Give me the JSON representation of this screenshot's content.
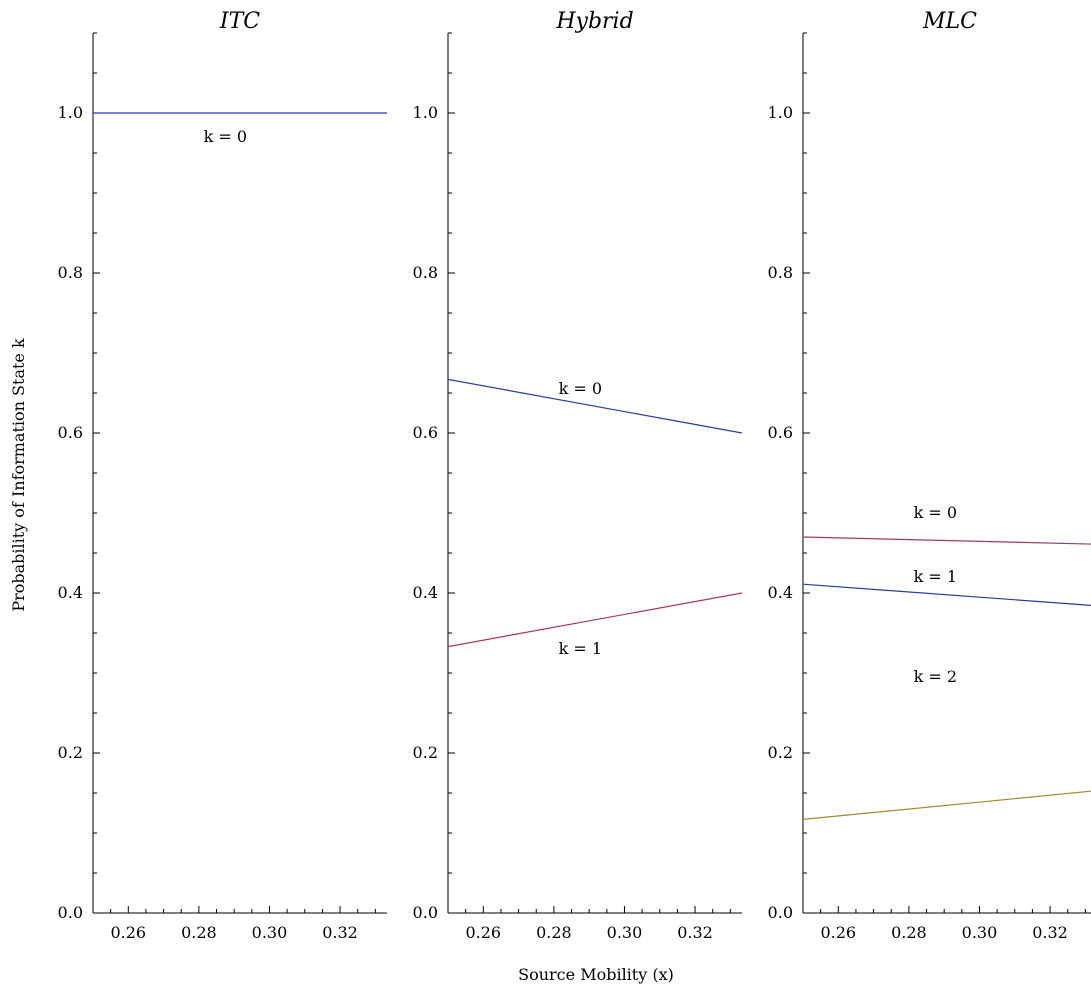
{
  "figure": {
    "xlabel": "Source Mobility (x)",
    "ylabel": "Probability of Information State k"
  },
  "chart_data": [
    {
      "type": "line",
      "title": "ITC",
      "xlim": [
        0.25,
        0.3333
      ],
      "ylim": [
        0.0,
        1.1
      ],
      "xticks": [
        "0.26",
        "0.28",
        "0.30",
        "0.32"
      ],
      "yticks": [
        "0.0",
        "0.2",
        "0.4",
        "0.6",
        "0.8",
        "1.0"
      ],
      "grid": false,
      "series": [
        {
          "color": "#2b3a9b",
          "x": [
            0.25,
            0.3333
          ],
          "y": [
            1.0,
            1.0
          ]
        }
      ],
      "annotations": [
        {
          "text": "k = 0",
          "x": 0.2875,
          "y": 0.97
        }
      ]
    },
    {
      "type": "line",
      "title": "Hybrid",
      "xlim": [
        0.25,
        0.3333
      ],
      "ylim": [
        0.0,
        1.1
      ],
      "xticks": [
        "0.26",
        "0.28",
        "0.30",
        "0.32"
      ],
      "yticks": [
        "0.0",
        "0.2",
        "0.4",
        "0.6",
        "0.8",
        "1.0"
      ],
      "grid": false,
      "series": [
        {
          "color": "#2b3a9b",
          "x": [
            0.25,
            0.3333
          ],
          "y": [
            0.667,
            0.6
          ]
        },
        {
          "color": "#a0386a",
          "x": [
            0.25,
            0.3333
          ],
          "y": [
            0.333,
            0.4
          ]
        }
      ],
      "annotations": [
        {
          "text": "k = 0",
          "x": 0.2875,
          "y": 0.655
        },
        {
          "text": "k = 1",
          "x": 0.2875,
          "y": 0.33
        }
      ]
    },
    {
      "type": "line",
      "title": "MLC",
      "xlim": [
        0.25,
        0.3333
      ],
      "ylim": [
        0.0,
        1.1
      ],
      "xticks": [
        "0.26",
        "0.28",
        "0.30",
        "0.32"
      ],
      "yticks": [
        "0.0",
        "0.2",
        "0.4",
        "0.6",
        "0.8",
        "1.0"
      ],
      "grid": false,
      "series": [
        {
          "color": "#a0386a",
          "x": [
            0.25,
            0.3333
          ],
          "y": [
            0.47,
            0.461
          ]
        },
        {
          "color": "#2b3a9b",
          "x": [
            0.25,
            0.3333
          ],
          "y": [
            0.411,
            0.384
          ]
        },
        {
          "color": "#a5882c",
          "x": [
            0.25,
            0.3333
          ],
          "y": [
            0.117,
            0.153
          ]
        }
      ],
      "annotations": [
        {
          "text": "k = 0",
          "x": 0.2875,
          "y": 0.5
        },
        {
          "text": "k = 1",
          "x": 0.2875,
          "y": 0.42
        },
        {
          "text": "k = 2",
          "x": 0.2875,
          "y": 0.295
        }
      ]
    }
  ]
}
